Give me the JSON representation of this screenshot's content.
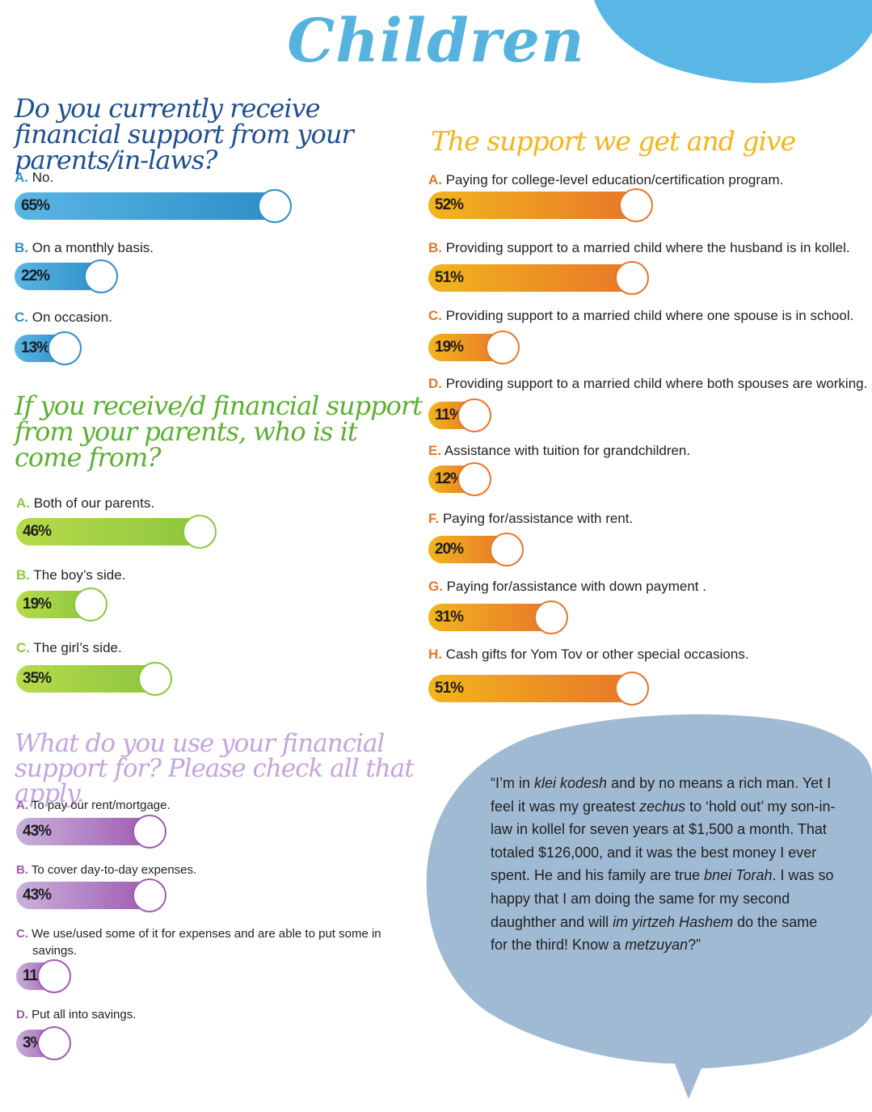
{
  "page_title": "Children",
  "colors": {
    "blue": "#2e8ec7",
    "blue_light": "#5ab6e4",
    "blue_title": "#1f4f8f",
    "green": "#8cc63f",
    "green_title": "#5cb031",
    "orange": "#e8762a",
    "yellow": "#f2b51c",
    "yellow_title": "#f2b51c",
    "purple": "#9f5ab0",
    "purple_light": "#c9b1dc",
    "purple_title": "#c4a4dd",
    "bubble": "#a1bad4",
    "splash": "#5ab6e4"
  },
  "chart_data": [
    {
      "type": "bar",
      "title": "Do you currently receive financial support from your parents/in-laws?",
      "categories": [
        "A.",
        "B.",
        "C."
      ],
      "labels": [
        "No.",
        "On a monthly basis.",
        "On occasion."
      ],
      "values": [
        65,
        22,
        13
      ],
      "value_labels": [
        "65%",
        "22%",
        "13%"
      ],
      "unit": "%"
    },
    {
      "type": "bar",
      "title": "If you receive/d financial support from your parents, who is it come from?",
      "categories": [
        "A.",
        "B.",
        "C."
      ],
      "labels": [
        "Both of our parents.",
        "The boy’s side.",
        "The girl’s side."
      ],
      "values": [
        46,
        19,
        35
      ],
      "value_labels": [
        "46%",
        "19%",
        "35%"
      ],
      "unit": "%"
    },
    {
      "type": "bar",
      "title": "What do you use your financial support for? Please check all that apply.",
      "categories": [
        "A.",
        "B.",
        "C.",
        "D."
      ],
      "labels": [
        "To pay our rent/mortgage.",
        "To cover day-to-day expenses.",
        "We use/used some of it for expenses and are able to put some in",
        "Put all into savings."
      ],
      "label_continuations": [
        "",
        "",
        "savings.",
        ""
      ],
      "values": [
        43,
        43,
        11,
        3
      ],
      "value_labels": [
        "43%",
        "43%",
        "11%",
        "3%"
      ],
      "unit": "%"
    },
    {
      "type": "bar",
      "title": "The support we get and give",
      "categories": [
        "A.",
        "B.",
        "C.",
        "D.",
        "E.",
        "F.",
        "G.",
        "H."
      ],
      "labels": [
        "Paying for college-level education/certification program.",
        "Providing support to a married child where the husband is in kollel.",
        "Providing support to a married child where one spouse is in school.",
        "Providing support to a married child where both spouses are working.",
        "Assistance with tuition for grandchildren.",
        "Paying for/assistance with rent.",
        "Paying for/assistance with down payment .",
        "Cash gifts for Yom Tov or other special occasions."
      ],
      "values": [
        52,
        51,
        19,
        11,
        12,
        20,
        31,
        51
      ],
      "value_labels": [
        "52%",
        "51%",
        "19%",
        "11%",
        "12%",
        "20%",
        "31%",
        "51%"
      ],
      "unit": "%"
    }
  ],
  "quote": {
    "parts": [
      {
        "t": "“I’m in "
      },
      {
        "t": "klei kodesh",
        "i": true
      },
      {
        "t": " and by no means a rich man. Yet I feel it was my greatest "
      },
      {
        "t": "zechus",
        "i": true
      },
      {
        "t": " to ‘hold out’ my son-in-law in kollel for seven years at $1,500 a month. That totaled $126,000, and it was the best money I ever spent. He and his family are true "
      },
      {
        "t": "bnei Torah",
        "i": true
      },
      {
        "t": ". I was so happy that I am doing the same for my second daughther and will "
      },
      {
        "t": "im yirtzeh Hashem",
        "i": true
      },
      {
        "t": " do the same for the third! Know a "
      },
      {
        "t": "metzuyan",
        "i": true
      },
      {
        "t": "?”"
      }
    ]
  }
}
